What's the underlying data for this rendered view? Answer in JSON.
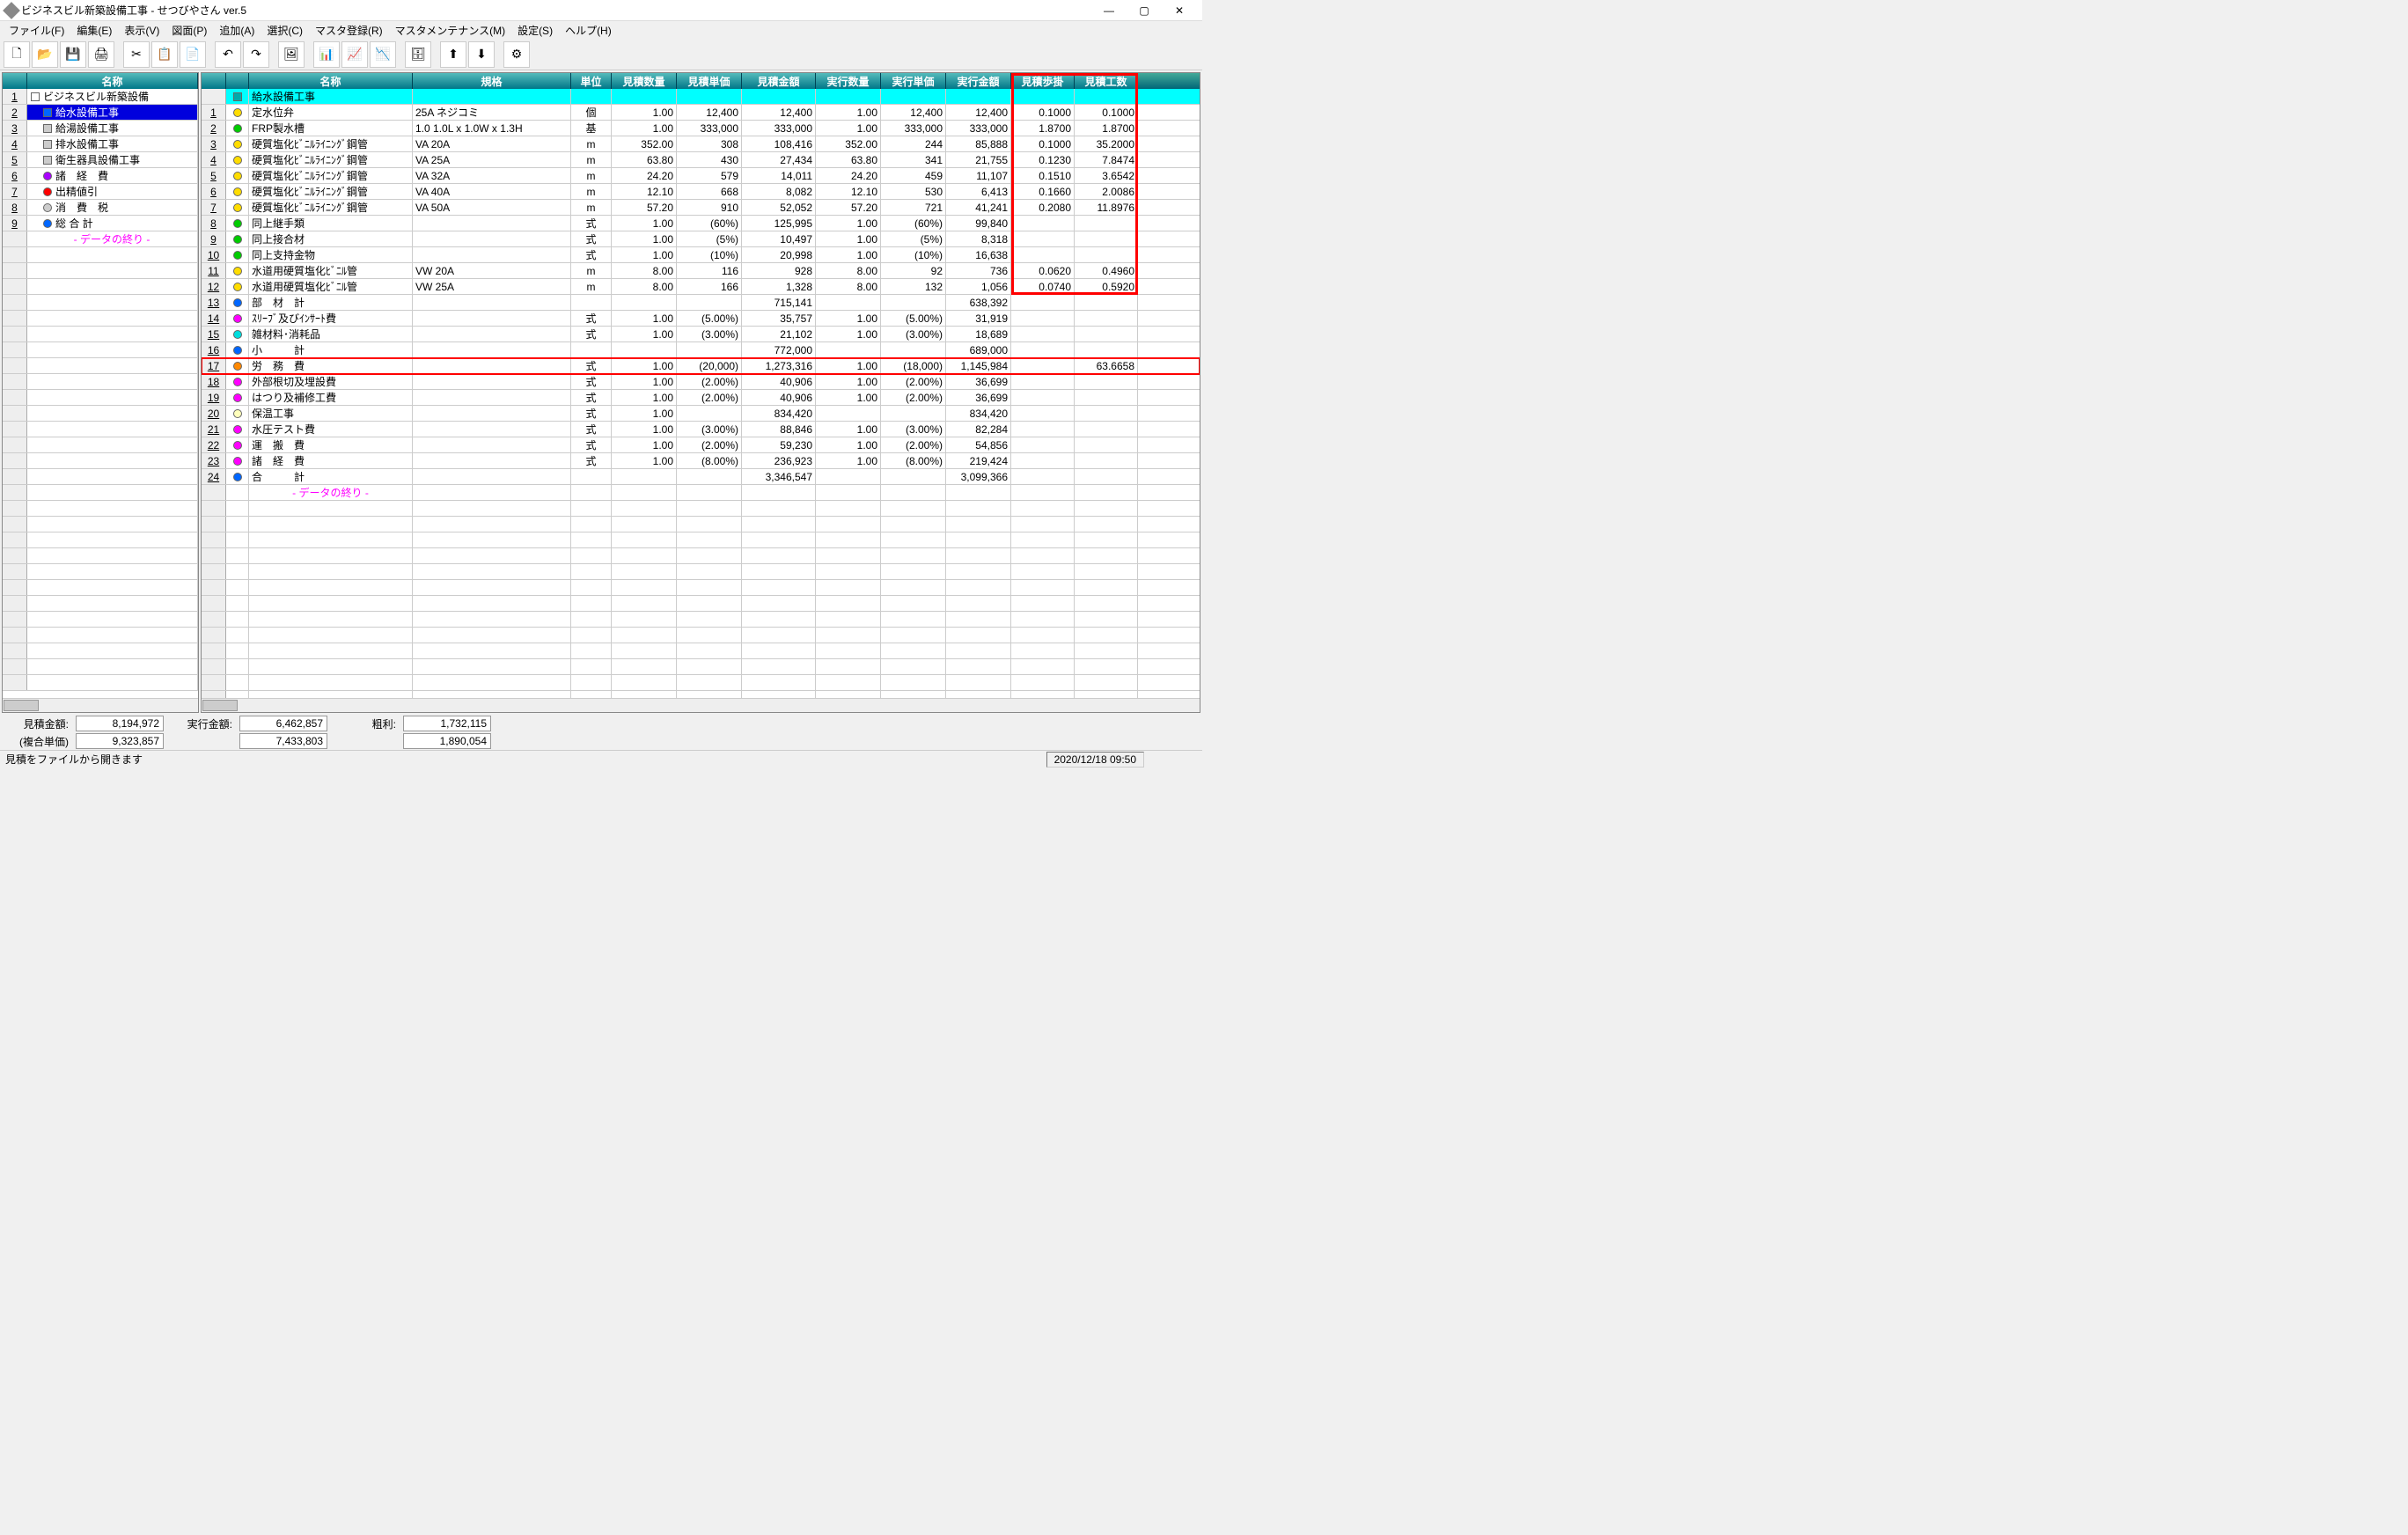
{
  "app": {
    "title": "ビジネスビル新築設備工事 - せつびやさん ver.5"
  },
  "menus": [
    "ファイル(F)",
    "編集(E)",
    "表示(V)",
    "図面(P)",
    "追加(A)",
    "選択(C)",
    "マスタ登録(R)",
    "マスタメンテナンス(M)",
    "設定(S)",
    "ヘルプ(H)"
  ],
  "toolbar_icons": [
    "🗋",
    "📂",
    "💾",
    "🖨",
    "|",
    "✂",
    "📋",
    "📄",
    "|",
    "↶",
    "↷",
    "|",
    "🖼",
    "|",
    "📊",
    "📈",
    "📉",
    "|",
    "🗄",
    "|",
    "⬆",
    "⬇",
    "|",
    "⚙"
  ],
  "tree": {
    "header": "名称",
    "items": [
      {
        "n": "1",
        "ic": "sq",
        "col": "#fff",
        "lbl": "ビジネスビル新築設備",
        "ind": 0
      },
      {
        "n": "2",
        "ic": "sq",
        "col": "#06f",
        "lbl": "給水設備工事",
        "ind": 1,
        "sel": true
      },
      {
        "n": "3",
        "ic": "sq",
        "col": "#ccc",
        "lbl": "給湯設備工事",
        "ind": 1
      },
      {
        "n": "4",
        "ic": "sq",
        "col": "#ccc",
        "lbl": "排水設備工事",
        "ind": 1
      },
      {
        "n": "5",
        "ic": "sq",
        "col": "#ccc",
        "lbl": "衛生器具設備工事",
        "ind": 1
      },
      {
        "n": "6",
        "ic": "dot",
        "col": "#a0f",
        "lbl": "諸　経　費",
        "ind": 1
      },
      {
        "n": "7",
        "ic": "dot",
        "col": "#f00",
        "lbl": "出精値引",
        "ind": 1
      },
      {
        "n": "8",
        "ic": "dot",
        "col": "#ccc",
        "lbl": "消　費　税",
        "ind": 1
      },
      {
        "n": "9",
        "ic": "dot",
        "col": "#06f",
        "lbl": "総 合 計",
        "ind": 1
      }
    ],
    "end": "- データの終り -"
  },
  "grid": {
    "cols": [
      {
        "k": "rn",
        "w": 28,
        "h": ""
      },
      {
        "k": "ic",
        "w": 26,
        "h": ""
      },
      {
        "k": "name",
        "w": 186,
        "h": "名称"
      },
      {
        "k": "spec",
        "w": 180,
        "h": "規格"
      },
      {
        "k": "unit",
        "w": 46,
        "h": "単位",
        "c": true
      },
      {
        "k": "eqty",
        "w": 74,
        "h": "見積数量",
        "r": true
      },
      {
        "k": "eprc",
        "w": 74,
        "h": "見積単価",
        "r": true
      },
      {
        "k": "eamt",
        "w": 84,
        "h": "見積金額",
        "r": true
      },
      {
        "k": "xqty",
        "w": 74,
        "h": "実行数量",
        "r": true
      },
      {
        "k": "xprc",
        "w": 74,
        "h": "実行単価",
        "r": true
      },
      {
        "k": "xamt",
        "w": 74,
        "h": "実行金額",
        "r": true
      },
      {
        "k": "estep",
        "w": 72,
        "h": "見積歩掛",
        "r": true
      },
      {
        "k": "ecnt",
        "w": 72,
        "h": "見積工数",
        "r": true
      }
    ],
    "rows": [
      {
        "cy": true,
        "ic": "sq",
        "col": "#0aa",
        "name": "給水設備工事"
      },
      {
        "rn": "1",
        "ic": "dot",
        "col": "#fd0",
        "name": "定水位弁",
        "spec": "25A ネジコミ",
        "unit": "個",
        "eqty": "1.00",
        "eprc": "12,400",
        "eamt": "12,400",
        "xqty": "1.00",
        "xprc": "12,400",
        "xamt": "12,400",
        "estep": "0.1000",
        "ecnt": "0.1000"
      },
      {
        "rn": "2",
        "ic": "dot",
        "col": "#0c0",
        "name": "FRP製水槽",
        "spec": "1.0 1.0L x 1.0W x 1.3H",
        "unit": "基",
        "eqty": "1.00",
        "eprc": "333,000",
        "eamt": "333,000",
        "xqty": "1.00",
        "xprc": "333,000",
        "xamt": "333,000",
        "estep": "1.8700",
        "ecnt": "1.8700"
      },
      {
        "rn": "3",
        "ic": "dot",
        "col": "#fd0",
        "name": "硬質塩化ﾋﾞﾆﾙﾗｲﾆﾝｸﾞ鋼管",
        "spec": "VA 20A",
        "unit": "m",
        "eqty": "352.00",
        "eprc": "308",
        "eamt": "108,416",
        "xqty": "352.00",
        "xprc": "244",
        "xamt": "85,888",
        "estep": "0.1000",
        "ecnt": "35.2000"
      },
      {
        "rn": "4",
        "ic": "dot",
        "col": "#fd0",
        "name": "硬質塩化ﾋﾞﾆﾙﾗｲﾆﾝｸﾞ鋼管",
        "spec": "VA 25A",
        "unit": "m",
        "eqty": "63.80",
        "eprc": "430",
        "eamt": "27,434",
        "xqty": "63.80",
        "xprc": "341",
        "xamt": "21,755",
        "estep": "0.1230",
        "ecnt": "7.8474"
      },
      {
        "rn": "5",
        "ic": "dot",
        "col": "#fd0",
        "name": "硬質塩化ﾋﾞﾆﾙﾗｲﾆﾝｸﾞ鋼管",
        "spec": "VA 32A",
        "unit": "m",
        "eqty": "24.20",
        "eprc": "579",
        "eamt": "14,011",
        "xqty": "24.20",
        "xprc": "459",
        "xamt": "11,107",
        "estep": "0.1510",
        "ecnt": "3.6542"
      },
      {
        "rn": "6",
        "ic": "dot",
        "col": "#fd0",
        "name": "硬質塩化ﾋﾞﾆﾙﾗｲﾆﾝｸﾞ鋼管",
        "spec": "VA 40A",
        "unit": "m",
        "eqty": "12.10",
        "eprc": "668",
        "eamt": "8,082",
        "xqty": "12.10",
        "xprc": "530",
        "xamt": "6,413",
        "estep": "0.1660",
        "ecnt": "2.0086"
      },
      {
        "rn": "7",
        "ic": "dot",
        "col": "#fd0",
        "name": "硬質塩化ﾋﾞﾆﾙﾗｲﾆﾝｸﾞ鋼管",
        "spec": "VA 50A",
        "unit": "m",
        "eqty": "57.20",
        "eprc": "910",
        "eamt": "52,052",
        "xqty": "57.20",
        "xprc": "721",
        "xamt": "41,241",
        "estep": "0.2080",
        "ecnt": "11.8976"
      },
      {
        "rn": "8",
        "ic": "dot",
        "col": "#0c0",
        "name": "同上継手類",
        "unit": "式",
        "eqty": "1.00",
        "eprc": "(60%)",
        "eamt": "125,995",
        "xqty": "1.00",
        "xprc": "(60%)",
        "xamt": "99,840"
      },
      {
        "rn": "9",
        "ic": "dot",
        "col": "#0c0",
        "name": "同上接合材",
        "unit": "式",
        "eqty": "1.00",
        "eprc": "(5%)",
        "eamt": "10,497",
        "xqty": "1.00",
        "xprc": "(5%)",
        "xamt": "8,318"
      },
      {
        "rn": "10",
        "ic": "dot",
        "col": "#0c0",
        "name": "同上支持金物",
        "unit": "式",
        "eqty": "1.00",
        "eprc": "(10%)",
        "eamt": "20,998",
        "xqty": "1.00",
        "xprc": "(10%)",
        "xamt": "16,638"
      },
      {
        "rn": "11",
        "ic": "dot",
        "col": "#fd0",
        "name": "水道用硬質塩化ﾋﾞﾆﾙ管",
        "spec": "VW 20A",
        "unit": "m",
        "eqty": "8.00",
        "eprc": "116",
        "eamt": "928",
        "xqty": "8.00",
        "xprc": "92",
        "xamt": "736",
        "estep": "0.0620",
        "ecnt": "0.4960"
      },
      {
        "rn": "12",
        "ic": "dot",
        "col": "#fd0",
        "name": "水道用硬質塩化ﾋﾞﾆﾙ管",
        "spec": "VW 25A",
        "unit": "m",
        "eqty": "8.00",
        "eprc": "166",
        "eamt": "1,328",
        "xqty": "8.00",
        "xprc": "132",
        "xamt": "1,056",
        "estep": "0.0740",
        "ecnt": "0.5920"
      },
      {
        "rn": "13",
        "ic": "dot",
        "col": "#06f",
        "name": "部　材　計",
        "eamt": "715,141",
        "xamt": "638,392"
      },
      {
        "rn": "14",
        "ic": "dot",
        "col": "#f0f",
        "name": "ｽﾘｰﾌﾞ及びｲﾝｻｰﾄ費",
        "unit": "式",
        "eqty": "1.00",
        "eprc": "(5.00%)",
        "eamt": "35,757",
        "xqty": "1.00",
        "xprc": "(5.00%)",
        "xamt": "31,919"
      },
      {
        "rn": "15",
        "ic": "dot",
        "col": "#0dd",
        "name": "雑材料･消耗品",
        "unit": "式",
        "eqty": "1.00",
        "eprc": "(3.00%)",
        "eamt": "21,102",
        "xqty": "1.00",
        "xprc": "(3.00%)",
        "xamt": "18,689"
      },
      {
        "rn": "16",
        "ic": "dot",
        "col": "#06f",
        "name": "小　　　計",
        "eamt": "772,000",
        "xamt": "689,000"
      },
      {
        "rn": "17",
        "ic": "dot",
        "col": "#f80",
        "name": "労　務　費",
        "unit": "式",
        "eqty": "1.00",
        "eprc": "(20,000)",
        "eamt": "1,273,316",
        "xqty": "1.00",
        "xprc": "(18,000)",
        "xamt": "1,145,984",
        "ecnt": "63.6658",
        "rb": true
      },
      {
        "rn": "18",
        "ic": "dot",
        "col": "#f0f",
        "name": "外部根切及埋設費",
        "unit": "式",
        "eqty": "1.00",
        "eprc": "(2.00%)",
        "eamt": "40,906",
        "xqty": "1.00",
        "xprc": "(2.00%)",
        "xamt": "36,699"
      },
      {
        "rn": "19",
        "ic": "dot",
        "col": "#f0f",
        "name": "はつり及補修工費",
        "unit": "式",
        "eqty": "1.00",
        "eprc": "(2.00%)",
        "eamt": "40,906",
        "xqty": "1.00",
        "xprc": "(2.00%)",
        "xamt": "36,699"
      },
      {
        "rn": "20",
        "ic": "dot",
        "col": "#ffb",
        "name": "保温工事",
        "unit": "式",
        "eqty": "1.00",
        "eamt": "834,420",
        "xamt": "834,420"
      },
      {
        "rn": "21",
        "ic": "dot",
        "col": "#f0f",
        "name": "水圧テスト費",
        "unit": "式",
        "eqty": "1.00",
        "eprc": "(3.00%)",
        "eamt": "88,846",
        "xqty": "1.00",
        "xprc": "(3.00%)",
        "xamt": "82,284"
      },
      {
        "rn": "22",
        "ic": "dot",
        "col": "#f0f",
        "name": "運　搬　費",
        "unit": "式",
        "eqty": "1.00",
        "eprc": "(2.00%)",
        "eamt": "59,230",
        "xqty": "1.00",
        "xprc": "(2.00%)",
        "xamt": "54,856"
      },
      {
        "rn": "23",
        "ic": "dot",
        "col": "#f0f",
        "name": "諸　経　費",
        "unit": "式",
        "eqty": "1.00",
        "eprc": "(8.00%)",
        "eamt": "236,923",
        "xqty": "1.00",
        "xprc": "(8.00%)",
        "xamt": "219,424"
      },
      {
        "rn": "24",
        "ic": "dot",
        "col": "#06f",
        "name": "合　　　計",
        "eamt": "3,346,547",
        "xamt": "3,099,366"
      }
    ],
    "end": "- データの終り -",
    "blank_rows": 13
  },
  "summary": {
    "l1": [
      [
        "見積金額:",
        "8,194,972"
      ],
      [
        "実行金額:",
        "6,462,857"
      ],
      [
        "粗利:",
        "1,732,115"
      ]
    ],
    "l2": [
      [
        "(複合単価)",
        "9,323,857"
      ],
      [
        "",
        "7,433,803"
      ],
      [
        "",
        "1,890,054"
      ]
    ]
  },
  "status": {
    "msg": "見積をファイルから開きます",
    "datetime": "2020/12/18 09:50"
  },
  "colors": {
    "redbox": "#ff0000"
  }
}
